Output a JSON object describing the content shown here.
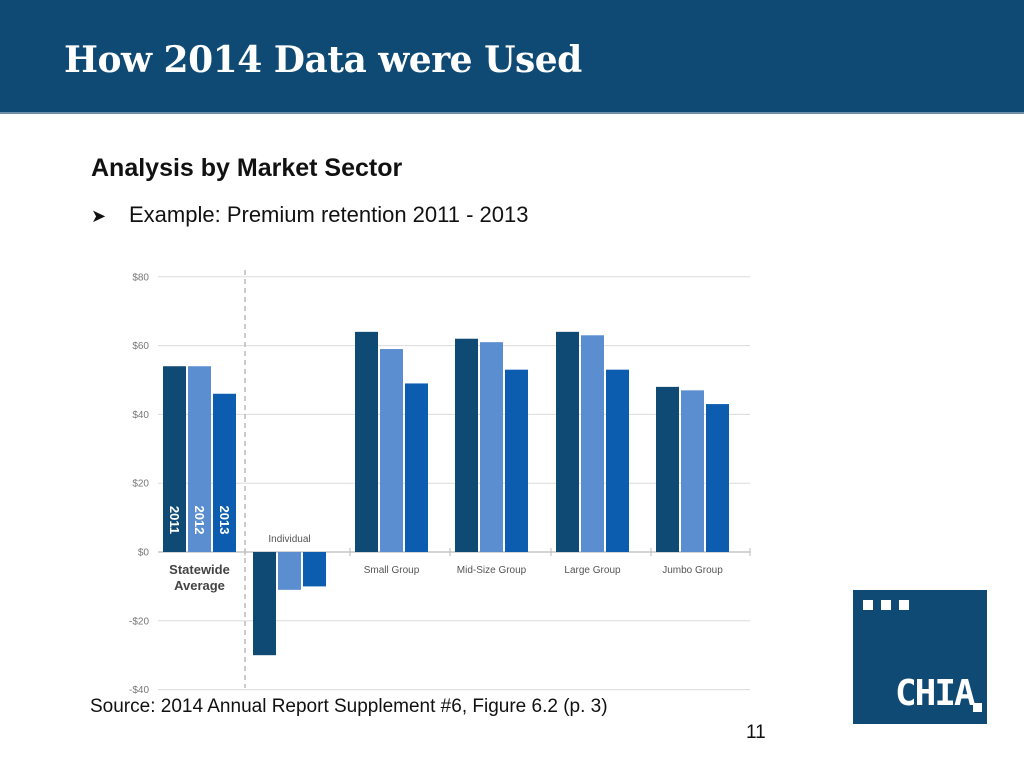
{
  "slide": {
    "title": "How 2014 Data were Used",
    "heading": "Analysis by Market Sector",
    "bullet_text": "Example: Premium retention 2011 - 2013",
    "source": "Source: 2014 Annual Report Supplement #6, Figure 6.2 (p. 3)",
    "page_number": "11"
  },
  "logo": {
    "text": "CHIA",
    "icon": "chia-logo"
  },
  "chart_data": {
    "type": "bar",
    "ylim": [
      -40,
      80
    ],
    "yticks": [
      80,
      60,
      40,
      20,
      0,
      -20,
      -40
    ],
    "ytick_labels": [
      "$80",
      "$60",
      "$40",
      "$20",
      "$0",
      "-$20",
      "-$40"
    ],
    "grid": true,
    "categories": [
      {
        "label_lines": [
          "Statewide",
          "Average"
        ],
        "values": [
          54,
          54,
          46
        ],
        "bold": true
      },
      {
        "label_lines": [
          "Individual"
        ],
        "values": [
          -30,
          -11,
          -10
        ],
        "bold": false
      },
      {
        "label_lines": [
          "Small Group"
        ],
        "values": [
          64,
          59,
          49
        ],
        "bold": false
      },
      {
        "label_lines": [
          "Mid-Size Group"
        ],
        "values": [
          62,
          61,
          53
        ],
        "bold": false
      },
      {
        "label_lines": [
          "Large Group"
        ],
        "values": [
          64,
          63,
          53
        ],
        "bold": false
      },
      {
        "label_lines": [
          "Jumbo Group"
        ],
        "values": [
          48,
          47,
          43
        ],
        "bold": false
      }
    ],
    "series": [
      {
        "name": "2011",
        "color": "#0f4a74"
      },
      {
        "name": "2012",
        "color": "#5b8ed0"
      },
      {
        "name": "2013",
        "color": "#0c5db0"
      }
    ]
  }
}
